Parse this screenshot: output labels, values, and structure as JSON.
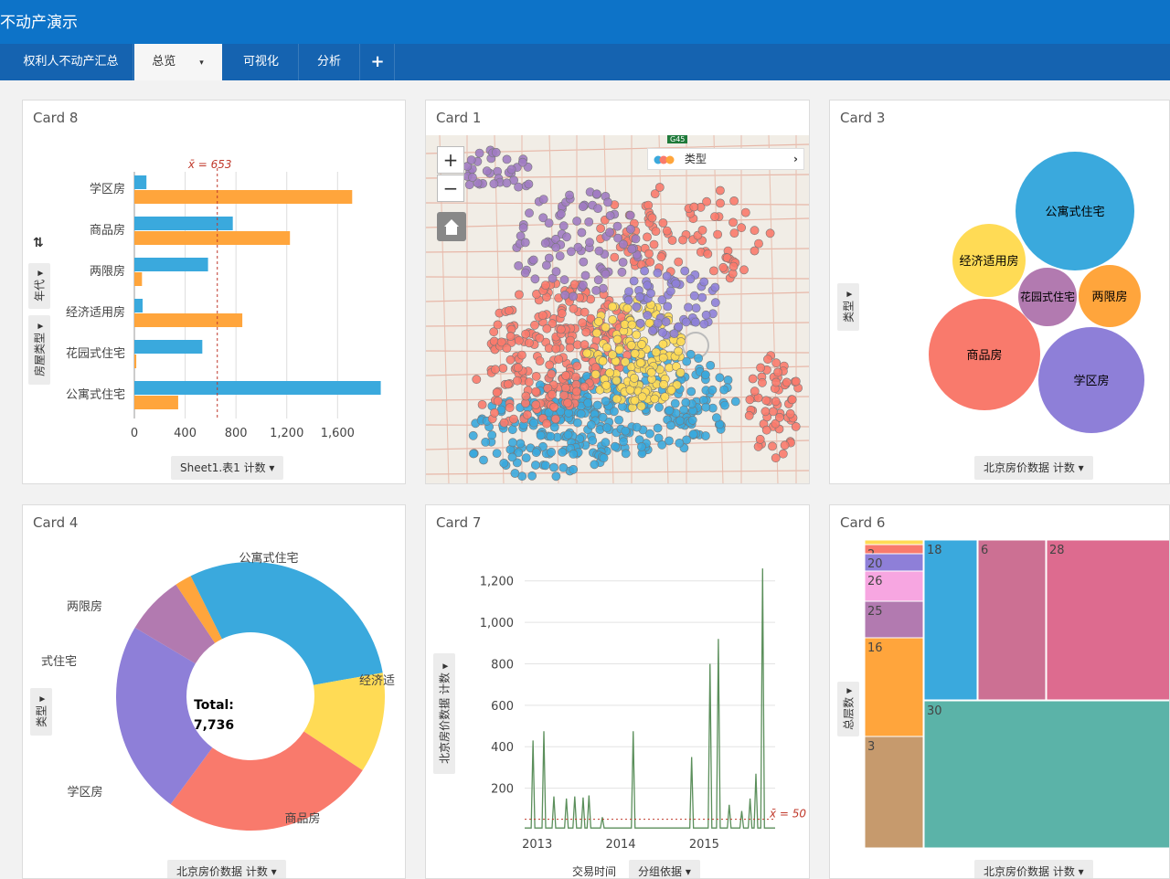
{
  "app": {
    "title": "不动产演示"
  },
  "tabs": [
    {
      "label": "权利人不动产汇总"
    },
    {
      "label": "总览",
      "caret": "▾"
    },
    {
      "label": "可视化"
    },
    {
      "label": "分析"
    },
    {
      "label": "+"
    }
  ],
  "colors": {
    "blue": "#3aa9dd",
    "orange": "#ffa53c",
    "purple": "#8e7fd8",
    "mauve": "#b27ab0",
    "yellow": "#ffdb55",
    "red": "#f97a6c",
    "green": "#5b8f5b"
  },
  "card8": {
    "title": "Card 8",
    "mean_label": "x̄ = 653",
    "footer": "Sheet1.表1 计数 ▾",
    "side_pill_1": "年代 ▾",
    "side_pill_2": "房屋类型 ▾",
    "sort_icon": "sort-icon",
    "chart_data": {
      "type": "bar",
      "orientation": "horizontal",
      "categories": [
        "学区房",
        "商品房",
        "两限房",
        "经济适用房",
        "花园式住宅",
        "公寓式住宅"
      ],
      "series": [
        {
          "values": [
            95,
            775,
            580,
            65,
            535,
            1940
          ]
        },
        {
          "values": [
            1715,
            1225,
            60,
            850,
            15,
            345
          ]
        }
      ],
      "mean": 653,
      "xlim": [
        0,
        1900
      ],
      "xticks": [
        "0",
        "400",
        "800",
        "1,200",
        "1,600"
      ]
    }
  },
  "card1": {
    "title": "Card 1",
    "legend_label": "类型",
    "zoom_in": "+",
    "zoom_out": "−",
    "road_label": "G45"
  },
  "card3": {
    "title": "Card 3",
    "side_pill": "类型 ▾",
    "footer": "北京房价数据 计数 ▾",
    "bubbles": [
      {
        "label": "公寓式住宅",
        "color": "#3aa9dd"
      },
      {
        "label": "经济适用房",
        "color": "#ffdb55"
      },
      {
        "label": "花园式住宅",
        "color": "#b27ab0"
      },
      {
        "label": "两限房",
        "color": "#ffa53c"
      },
      {
        "label": "商品房",
        "color": "#f97a6c"
      },
      {
        "label": "学区房",
        "color": "#8e7fd8"
      }
    ]
  },
  "card4": {
    "title": "Card 4",
    "total_label": "Total:",
    "total_value": "7,736",
    "side_pill": "类型 ▾",
    "footer": "北京房价数据 计数 ▾",
    "chart_data": {
      "type": "pie",
      "slices": [
        {
          "label": "公寓式住宅",
          "value": 2285,
          "color": "#3aa9dd"
        },
        {
          "label": "经济适",
          "value": 935,
          "color": "#ffdb55"
        },
        {
          "label": "商品房",
          "value": 2000,
          "color": "#f97a6c"
        },
        {
          "label": "学区房",
          "value": 1810,
          "color": "#8e7fd8"
        },
        {
          "label": "式住宅",
          "value": 550,
          "color": "#b27ab0"
        },
        {
          "label": "两限房",
          "value": 156,
          "color": "#ffa53c"
        }
      ]
    }
  },
  "card7": {
    "title": "Card 7",
    "side_pill": "北京房价数据 计数 ▾",
    "footer_1": "交易时间",
    "footer_2": "分组依据 ▾",
    "mean_label": "x̄ = 50",
    "chart_data": {
      "type": "line",
      "ylim": [
        0,
        1300
      ],
      "yticks": [
        "200",
        "400",
        "600",
        "800",
        "1,000",
        "1,200"
      ],
      "xticks": [
        "2013",
        "2014",
        "2015"
      ],
      "mean": 50,
      "spikes": [
        {
          "x": 2012.95,
          "y": 430
        },
        {
          "x": 2013.08,
          "y": 475
        },
        {
          "x": 2013.2,
          "y": 160
        },
        {
          "x": 2013.35,
          "y": 150
        },
        {
          "x": 2013.45,
          "y": 160
        },
        {
          "x": 2013.55,
          "y": 155
        },
        {
          "x": 2013.62,
          "y": 165
        },
        {
          "x": 2013.78,
          "y": 60
        },
        {
          "x": 2014.15,
          "y": 475
        },
        {
          "x": 2014.85,
          "y": 350
        },
        {
          "x": 2015.07,
          "y": 800
        },
        {
          "x": 2015.17,
          "y": 920
        },
        {
          "x": 2015.3,
          "y": 120
        },
        {
          "x": 2015.45,
          "y": 90
        },
        {
          "x": 2015.55,
          "y": 150
        },
        {
          "x": 2015.62,
          "y": 270
        },
        {
          "x": 2015.7,
          "y": 1260
        }
      ]
    }
  },
  "card6": {
    "title": "Card 6",
    "side_pill": "总层数 ▾",
    "footer": "北京房价数据 计数 ▾",
    "cells": [
      {
        "label": "",
        "color": "#ffdb55"
      },
      {
        "label": "2",
        "color": "#f97a6c"
      },
      {
        "label": "20",
        "color": "#8e7fd8"
      },
      {
        "label": "26",
        "color": "#f7a6e1"
      },
      {
        "label": "25",
        "color": "#b27ab0"
      },
      {
        "label": "16",
        "color": "#ffa53c"
      },
      {
        "label": "3",
        "color": "#c69a6d"
      },
      {
        "label": "18",
        "color": "#3aa9dd"
      },
      {
        "label": "6",
        "color": "#cc7093"
      },
      {
        "label": "28",
        "color": "#dd6b8f"
      },
      {
        "label": "30",
        "color": "#5bb3a8"
      }
    ]
  }
}
